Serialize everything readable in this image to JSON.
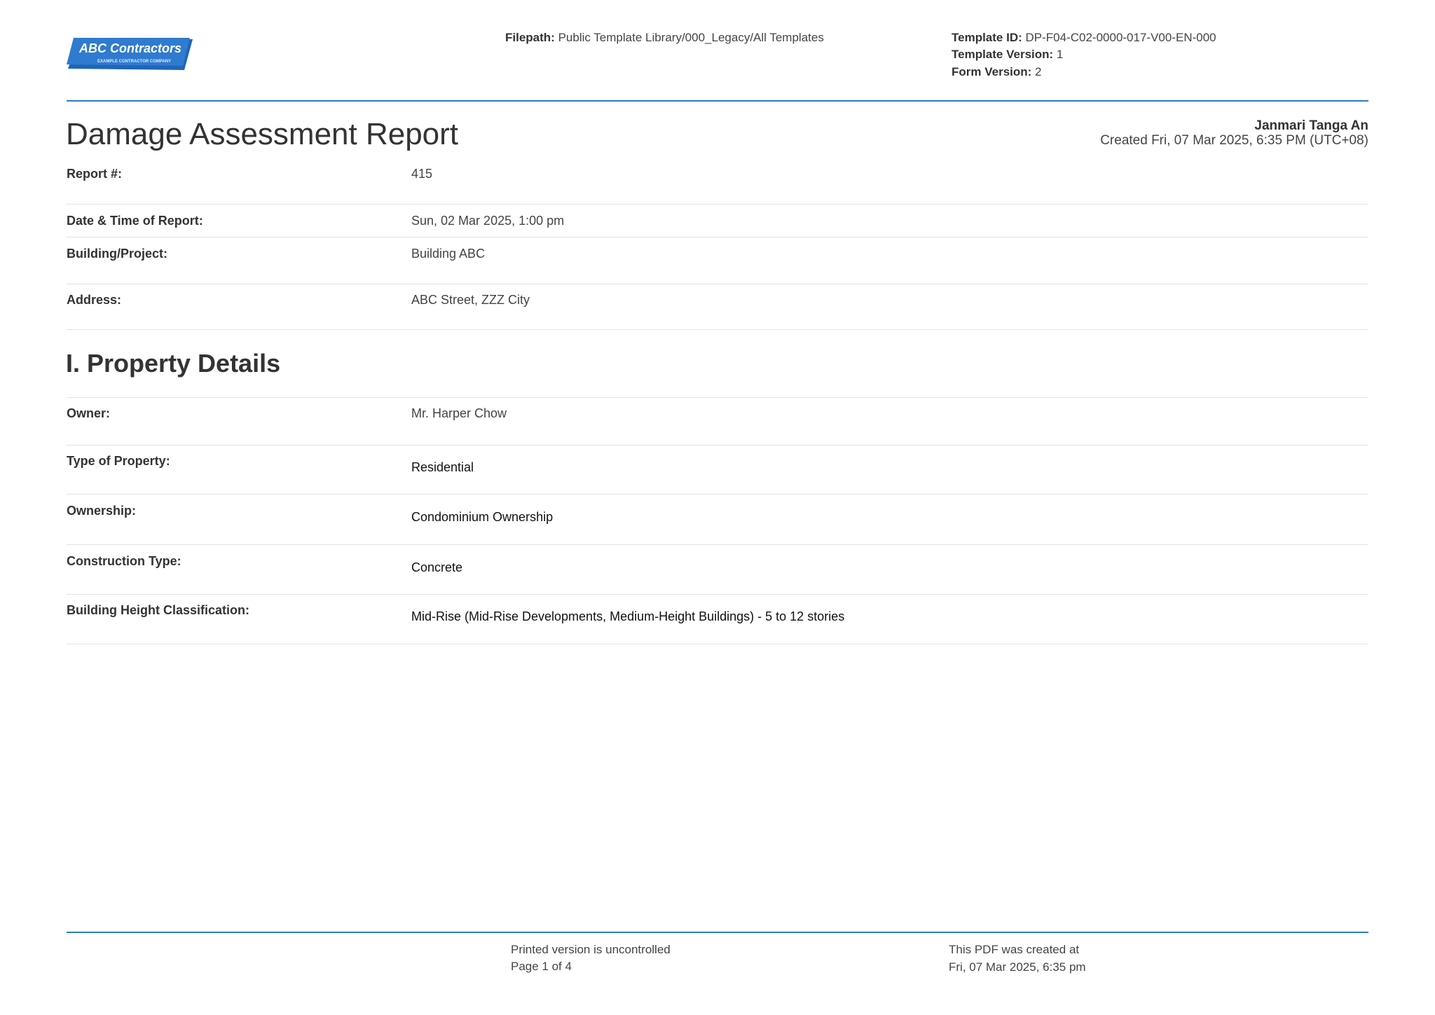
{
  "header": {
    "logo": {
      "name": "ABC Contractors",
      "tagline": "EXAMPLE CONTRACTOR COMPANY",
      "color": "#2f7bd0"
    },
    "filepath_label": "Filepath:",
    "filepath": "Public Template Library/000_Legacy/All Templates",
    "template_id_label": "Template ID:",
    "template_id": "DP-F04-C02-0000-017-V00-EN-000",
    "template_version_label": "Template Version:",
    "template_version": "1",
    "form_version_label": "Form Version:",
    "form_version": "2"
  },
  "report": {
    "title": "Damage Assessment Report",
    "author": "Janmari Tanga An",
    "created": "Created Fri, 07 Mar 2025, 6:35 PM (UTC+08)",
    "fields": [
      {
        "label": "Report #:",
        "value": "415"
      },
      {
        "label": "Date & Time of Report:",
        "value": "Sun, 02 Mar 2025, 1:00 pm"
      },
      {
        "label": "Building/Project:",
        "value": "Building ABC"
      },
      {
        "label": "Address:",
        "value": "ABC Street, ZZZ City"
      }
    ]
  },
  "property": {
    "heading": "I. Property Details",
    "fields": [
      {
        "label": "Owner:",
        "value": "Mr. Harper Chow"
      },
      {
        "label": "Type of Property:",
        "value": "Residential"
      },
      {
        "label": "Ownership:",
        "value": "Condominium Ownership"
      },
      {
        "label": "Construction Type:",
        "value": "Concrete"
      },
      {
        "label": "Building Height Classification:",
        "value": "Mid-Rise (Mid-Rise Developments, Medium-Height Buildings) - 5 to 12 stories"
      }
    ]
  },
  "footer": {
    "uncontrolled": "Printed version is uncontrolled",
    "page": "Page 1 of 4",
    "pdf_created_label": "This PDF was created at",
    "pdf_created": "Fri, 07 Mar 2025, 6:35 pm"
  }
}
